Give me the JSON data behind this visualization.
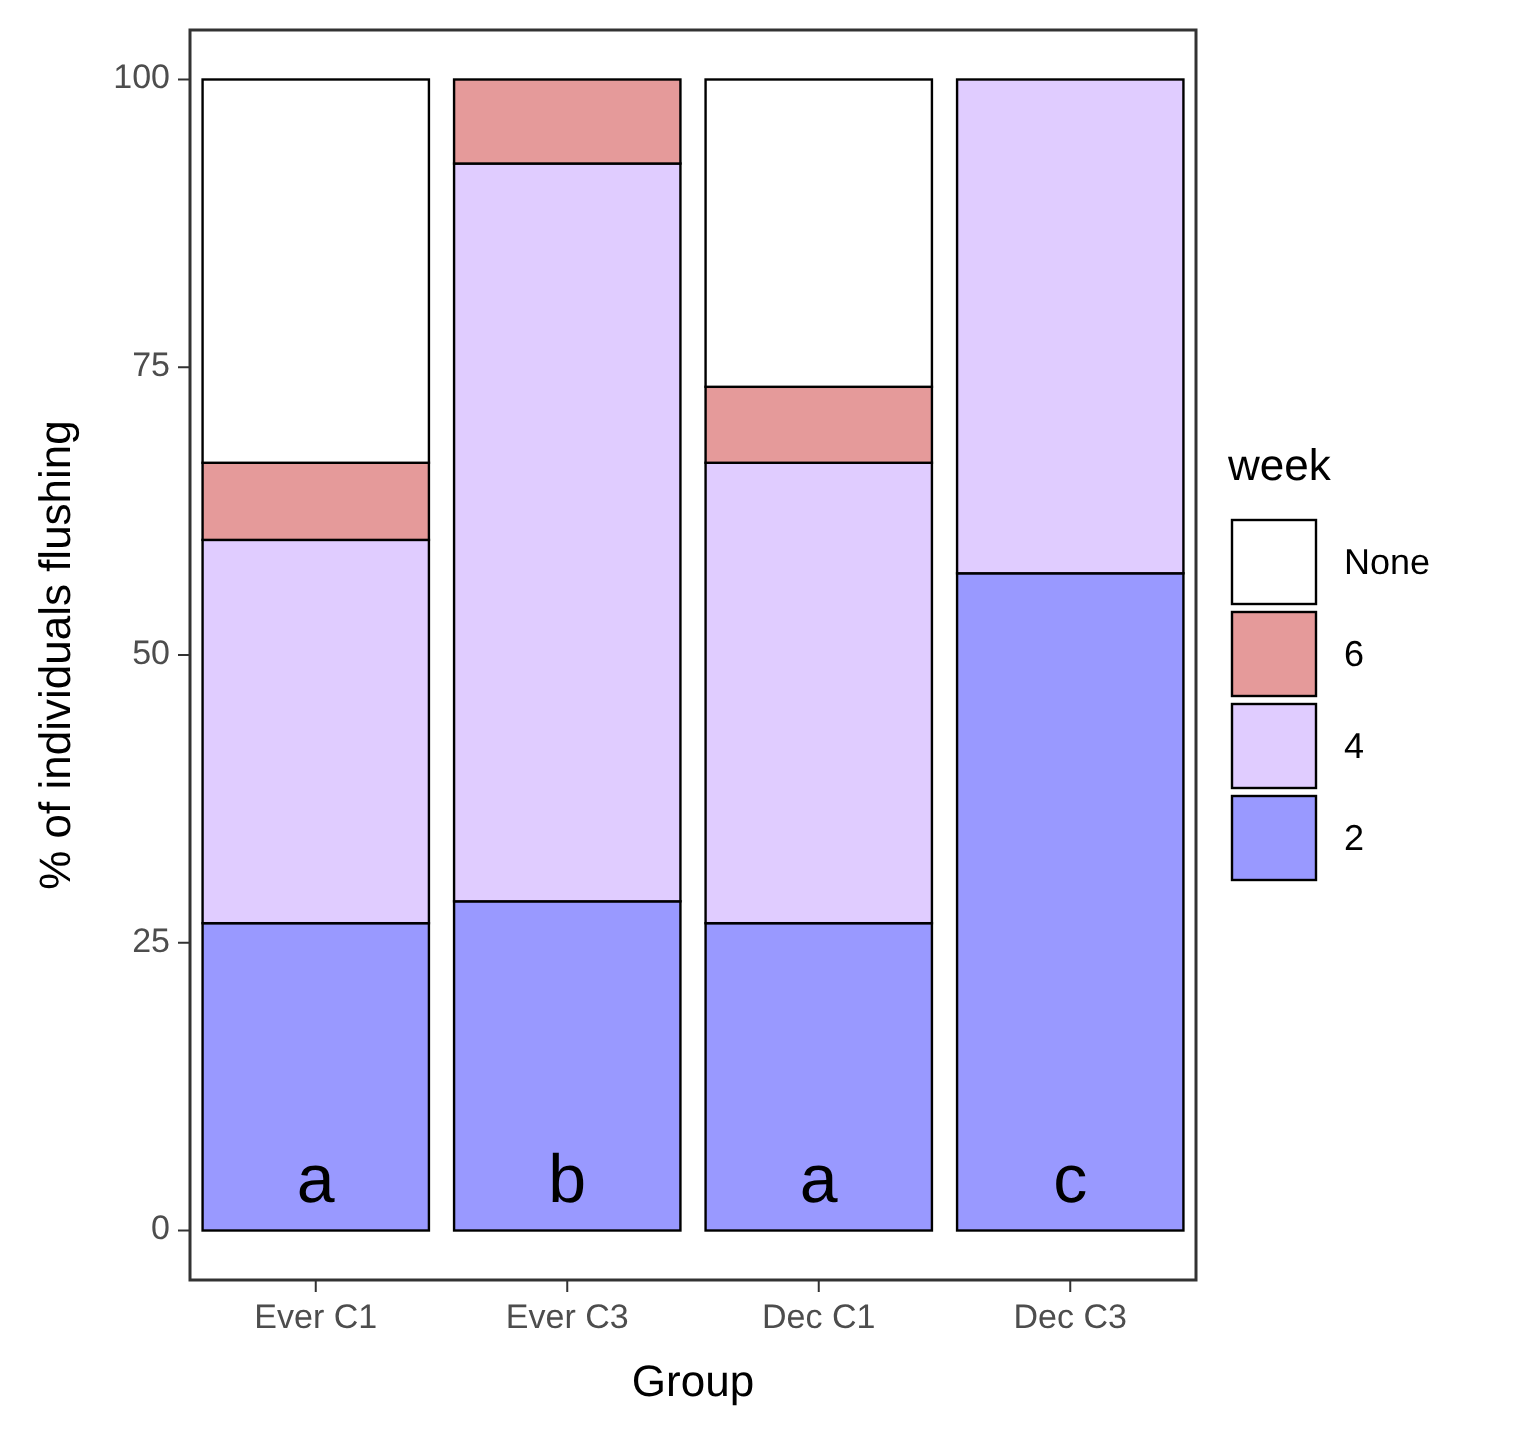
{
  "chart_data": {
    "type": "bar",
    "stacked": true,
    "xlabel": "Group",
    "ylabel": "% of individuals flushing",
    "legend_title": "week",
    "legend": "right",
    "grid": false,
    "categories": [
      "Ever C1",
      "Ever C3",
      "Dec C1",
      "Dec C3"
    ],
    "series": [
      {
        "name": "2",
        "color": "#9999ff",
        "values": [
          26.7,
          28.6,
          26.7,
          57.1
        ]
      },
      {
        "name": "4",
        "color": "#e0ccff",
        "values": [
          33.3,
          64.1,
          40,
          42.9
        ]
      },
      {
        "name": "6",
        "color": "#e59a9a",
        "values": [
          6.7,
          7.3,
          6.6,
          0
        ]
      },
      {
        "name": "None",
        "color": "#ffffff",
        "values": [
          33.3,
          0,
          26.7,
          0
        ]
      }
    ],
    "ylim": [
      -4.3,
      104.3
    ],
    "yticks": [
      0,
      25,
      50,
      75,
      100
    ],
    "annotations": [
      "a",
      "b",
      "a",
      "c"
    ]
  }
}
